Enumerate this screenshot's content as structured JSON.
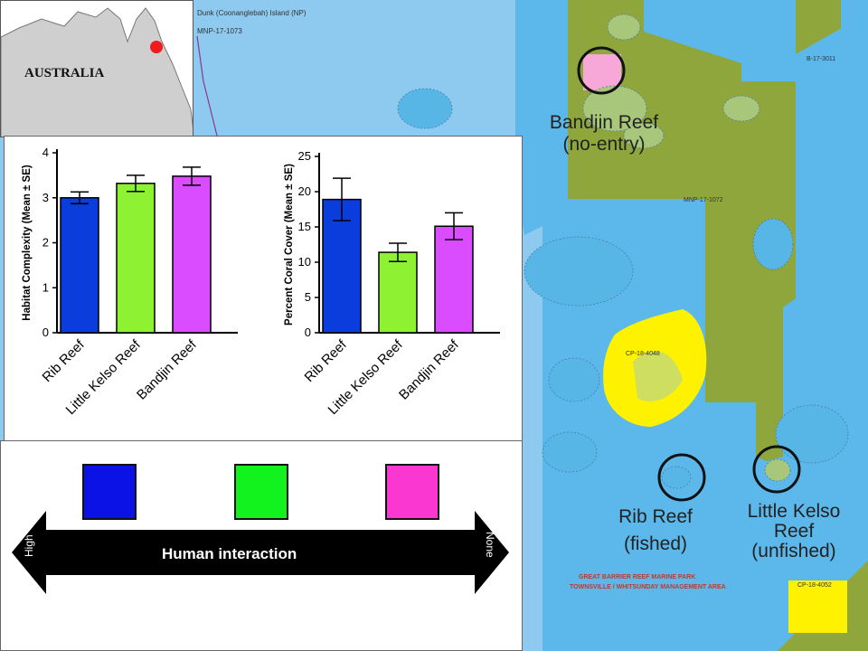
{
  "inset": {
    "title": "AUSTRALIA",
    "marker_color": "#ee1c1c"
  },
  "map": {
    "top_labels": [
      "Dunk (Coonanglebah) Island (NP)",
      "MNP-17-1073"
    ],
    "mid_labels": [
      "MNP-17-1072",
      "CP-18-4048",
      "B-17-3011"
    ],
    "park_title_line1": "GREAT BARRIER REEF MARINE PARK",
    "park_title_line2": "TOWNSVILLE / WHITSUNDAY MANAGEMENT AREA",
    "bottom_label": "CP-18-4052",
    "reefs": {
      "bandjin": {
        "name": "Bandjin Reef",
        "status": "(no-entry)"
      },
      "rib": {
        "name": "Rib Reef",
        "status": "(fished)"
      },
      "kelso": {
        "name_line1": "Little Kelso",
        "name_line2": "Reef",
        "status": "(unfished)"
      }
    },
    "colors": {
      "sea": "#8ec9ef",
      "green_zone": "#8ea63b",
      "yellow_zone": "#fff200",
      "pink_zone": "#f7a8d8",
      "reef_light": "#58b6e6"
    }
  },
  "chart_data": [
    {
      "type": "bar",
      "ylabel": "Habitat Complexity (Mean ± SE)",
      "categories": [
        "Rib Reef",
        "Little Kelso Reef",
        "Bandjin Reef"
      ],
      "values": [
        3.0,
        3.32,
        3.48
      ],
      "errors": [
        0.13,
        0.18,
        0.2
      ],
      "colors": [
        "#0a3ddb",
        "#8ef233",
        "#d94cff"
      ],
      "ylim": [
        0,
        4
      ],
      "yticks": [
        0,
        1,
        2,
        3,
        4
      ]
    },
    {
      "type": "bar",
      "ylabel": "Percent Coral Cover (Mean ± SE)",
      "categories": [
        "Rib Reef",
        "Little Kelso Reef",
        "Bandjin Reef"
      ],
      "values": [
        18.9,
        11.4,
        15.1
      ],
      "errors": [
        3.0,
        1.3,
        1.9
      ],
      "colors": [
        "#0a3ddb",
        "#8ef233",
        "#d94cff"
      ],
      "ylim": [
        0,
        25
      ],
      "yticks": [
        0,
        5,
        10,
        15,
        20,
        25
      ]
    }
  ],
  "legend": {
    "arrow_label": "Human interaction",
    "left_end": "High",
    "right_end": "None",
    "swatches": [
      "#0a12e6",
      "#12f21c",
      "#fb37d2"
    ]
  }
}
